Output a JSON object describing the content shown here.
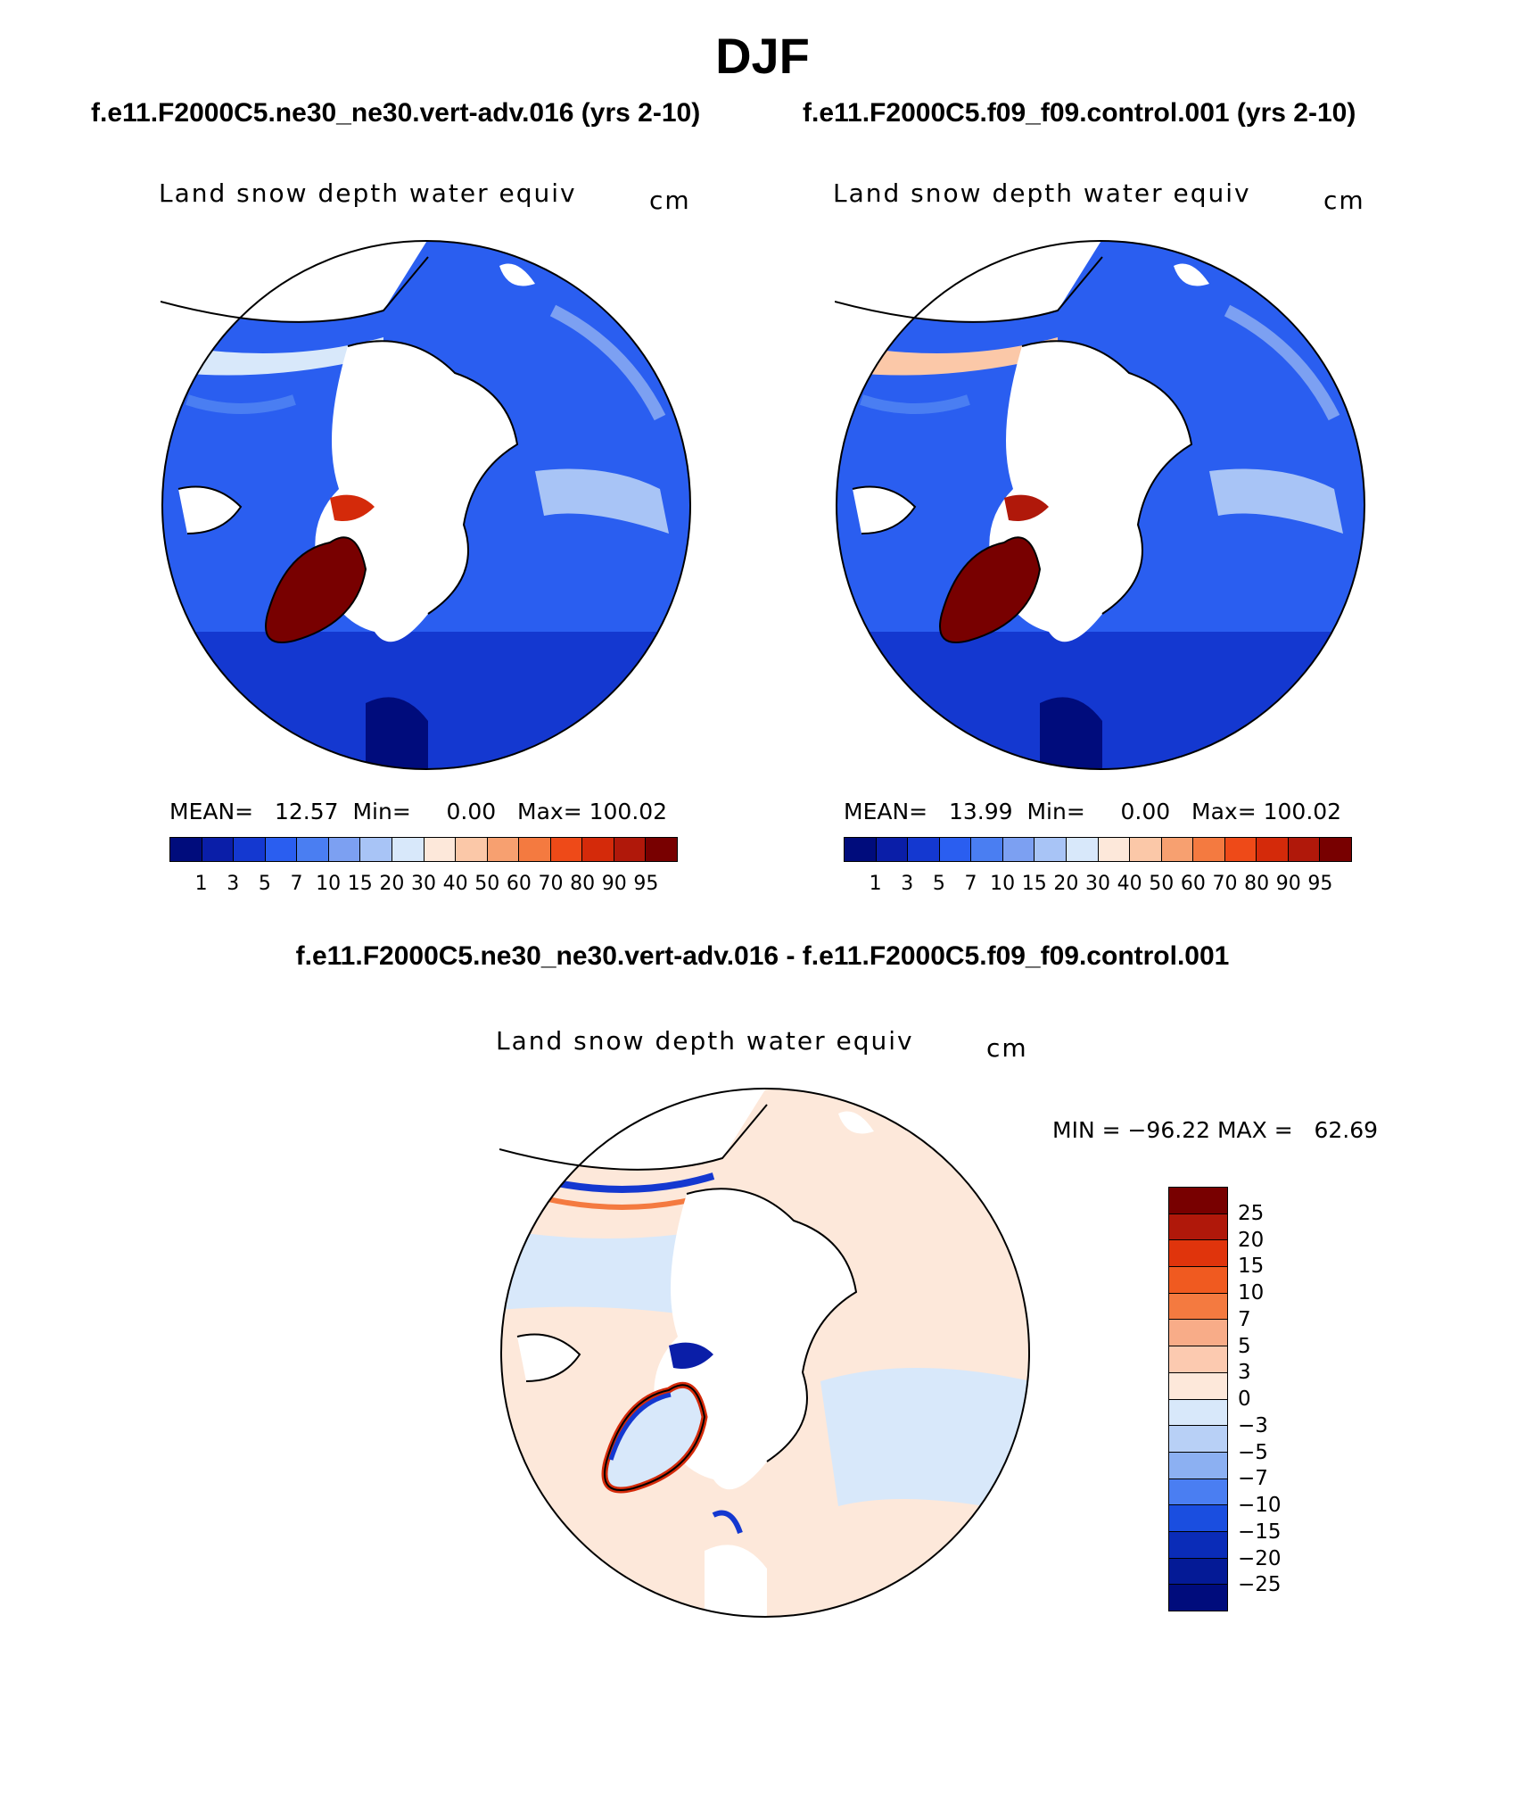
{
  "title": "DJF",
  "left_case": "f.e11.F2000C5.ne30_ne30.vert-adv.016 (yrs 2-10)",
  "right_case": "f.e11.F2000C5.f09_f09.control.001 (yrs 2-10)",
  "diff_title": "f.e11.F2000C5.ne30_ne30.vert-adv.016 - f.e11.F2000C5.f09_f09.control.001",
  "panels": {
    "left": {
      "variable": "Land snow depth water equiv",
      "units": "cm",
      "mean_label": "MEAN=",
      "mean": "12.57",
      "min_label": "Min=",
      "min": "0.00",
      "max_label": "Max=",
      "max": "100.02"
    },
    "right": {
      "variable": "Land snow depth water equiv",
      "units": "cm",
      "mean_label": "MEAN=",
      "mean": "13.99",
      "min_label": "Min=",
      "min": "0.00",
      "max_label": "Max=",
      "max": "100.02"
    },
    "diff": {
      "variable": "Land snow depth water equiv",
      "units": "cm",
      "minmax": "MIN = −96.22 MAX =   62.69"
    }
  },
  "colorbar_abs": {
    "levels": [
      "1",
      "3",
      "5",
      "7",
      "10",
      "15",
      "20",
      "30",
      "40",
      "50",
      "60",
      "70",
      "80",
      "90",
      "95"
    ],
    "colors": [
      "#000c7c",
      "#0a1ea8",
      "#1438d0",
      "#2a5ef0",
      "#4a7ef2",
      "#7ca0f2",
      "#a8c4f6",
      "#d8e8fa",
      "#fde8da",
      "#fbc8a8",
      "#f7a070",
      "#f47a40",
      "#ee4a18",
      "#d42a0a",
      "#b0180a",
      "#780000"
    ]
  },
  "colorbar_diff": {
    "levels": [
      "25",
      "20",
      "15",
      "10",
      "7",
      "5",
      "3",
      "0",
      "−3",
      "−5",
      "−7",
      "−10",
      "−15",
      "−20",
      "−25"
    ],
    "colors": [
      "#780000",
      "#b0180a",
      "#e0340c",
      "#f05a20",
      "#f47a40",
      "#f8ac88",
      "#fccab0",
      "#fde8da",
      "#d8e8fa",
      "#b8d0f6",
      "#8cb0f2",
      "#4a7ef2",
      "#1a4ee0",
      "#0a2cb8",
      "#041a96",
      "#000c7c"
    ]
  }
}
